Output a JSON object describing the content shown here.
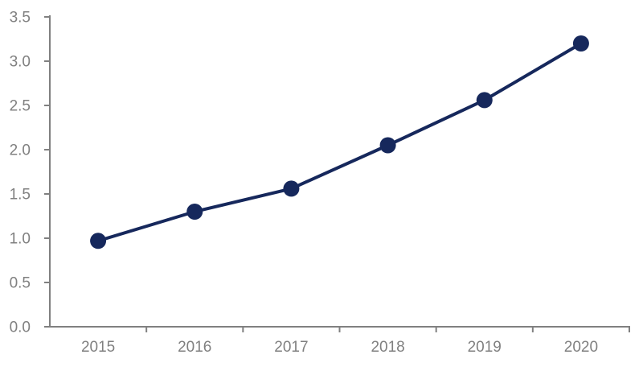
{
  "chart_data": {
    "type": "line",
    "categories": [
      "2015",
      "2016",
      "2017",
      "2018",
      "2019",
      "2020"
    ],
    "values": [
      0.97,
      1.3,
      1.56,
      2.05,
      2.56,
      3.2
    ],
    "ylim": [
      0,
      3.5
    ],
    "ytick_step": 0.5,
    "ytick_labels": [
      "0.0",
      "0.5",
      "1.0",
      "1.5",
      "2.0",
      "2.5",
      "3.0",
      "3.5"
    ],
    "grid": false,
    "legend_position": "none",
    "marker": "circle",
    "colors": {
      "line": "#16285c",
      "marker": "#16285c",
      "axis": "#808080",
      "tick_label": "#808080",
      "background": "#ffffff"
    }
  }
}
